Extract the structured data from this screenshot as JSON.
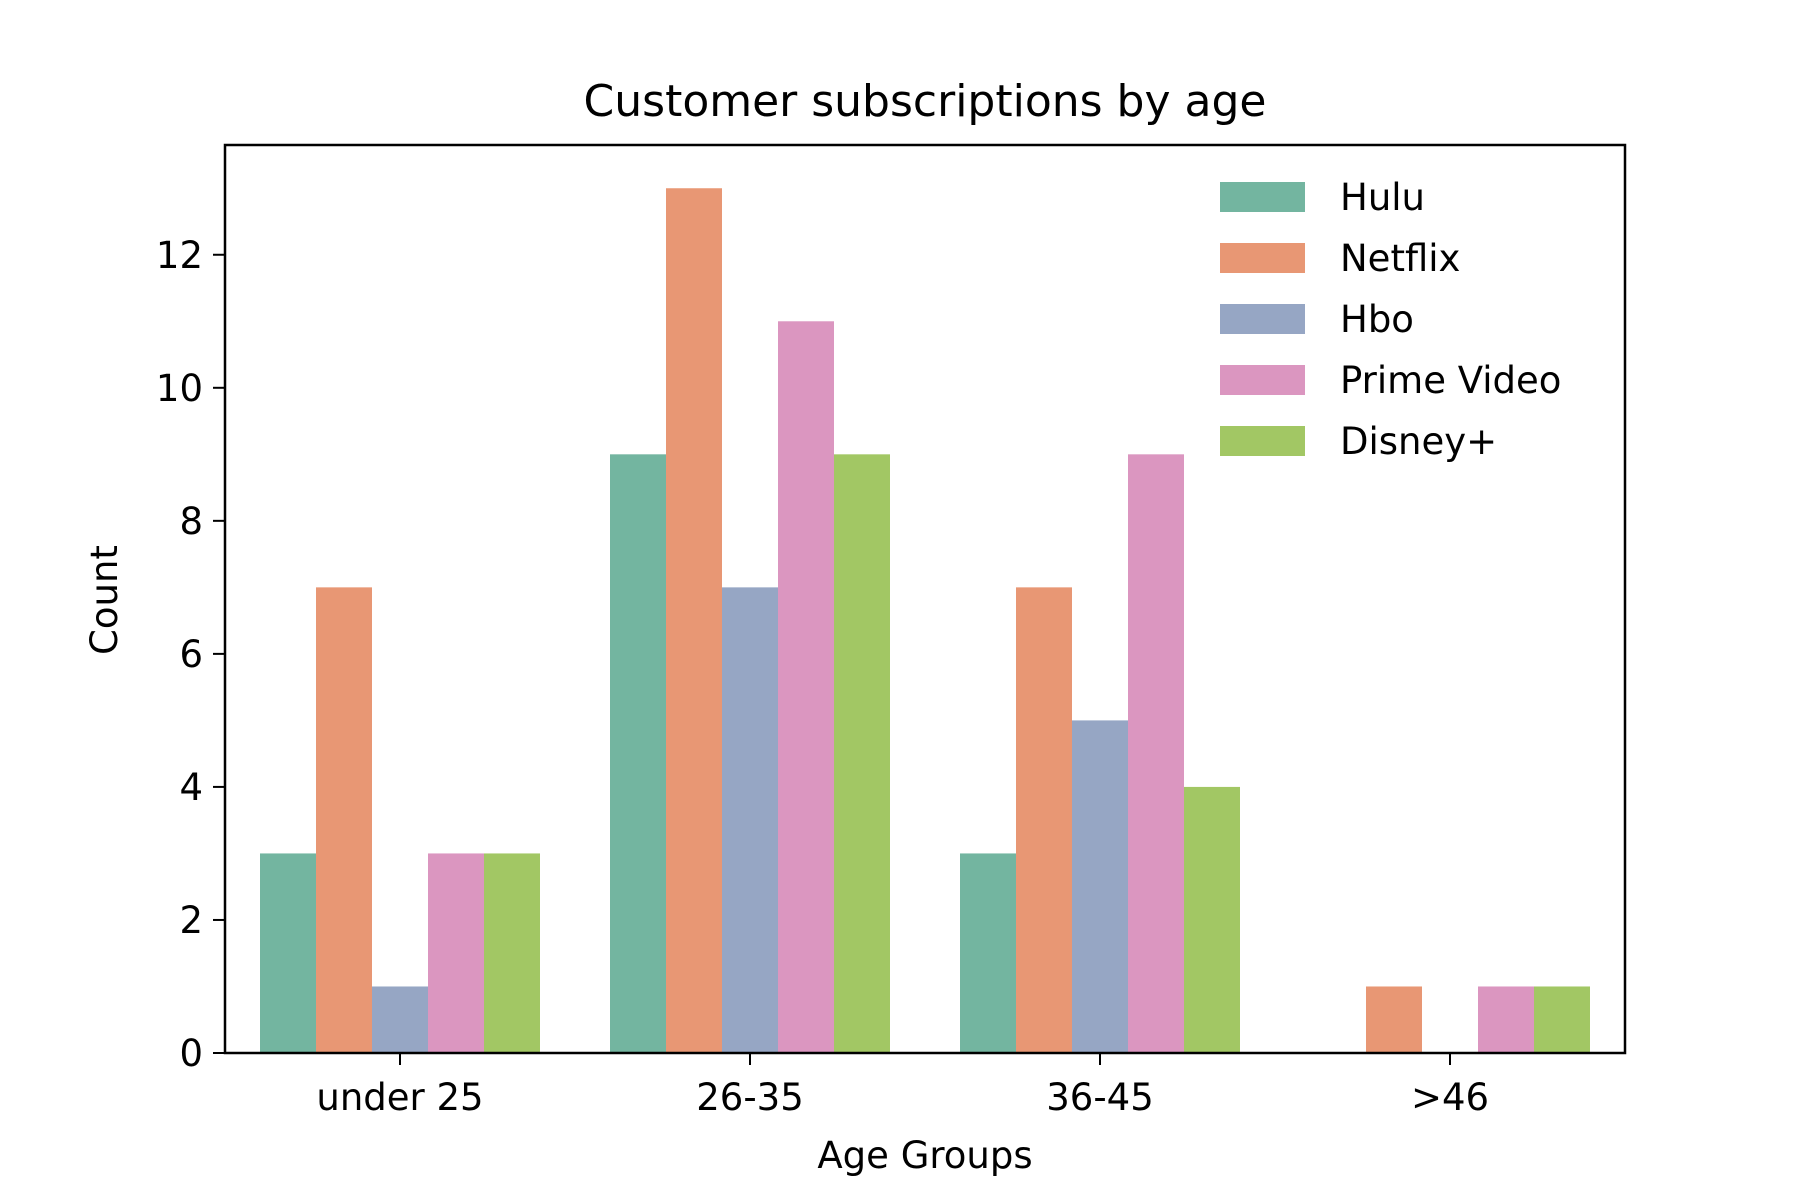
{
  "chart_data": {
    "type": "bar",
    "title": "Customer subscriptions by age",
    "xlabel": "Age Groups",
    "ylabel": "Count",
    "categories": [
      "under 25",
      "26-35",
      "36-45",
      ">46"
    ],
    "ylim": [
      0,
      13.65
    ],
    "yticks": [
      "0",
      "2",
      "4",
      "6",
      "8",
      "10",
      "12"
    ],
    "grid": false,
    "legend_position": "top-right",
    "series": [
      {
        "name": "Hulu",
        "color": "#73b5a0",
        "values": [
          3,
          9,
          3,
          0
        ]
      },
      {
        "name": "Netflix",
        "color": "#e89774",
        "values": [
          7,
          13,
          7,
          1
        ]
      },
      {
        "name": "Hbo",
        "color": "#96a6c4",
        "values": [
          1,
          7,
          5,
          0
        ]
      },
      {
        "name": "Prime Video",
        "color": "#db96c0",
        "values": [
          3,
          11,
          9,
          1
        ]
      },
      {
        "name": "Disney+",
        "color": "#a2c764",
        "values": [
          3,
          9,
          4,
          1
        ]
      }
    ]
  }
}
